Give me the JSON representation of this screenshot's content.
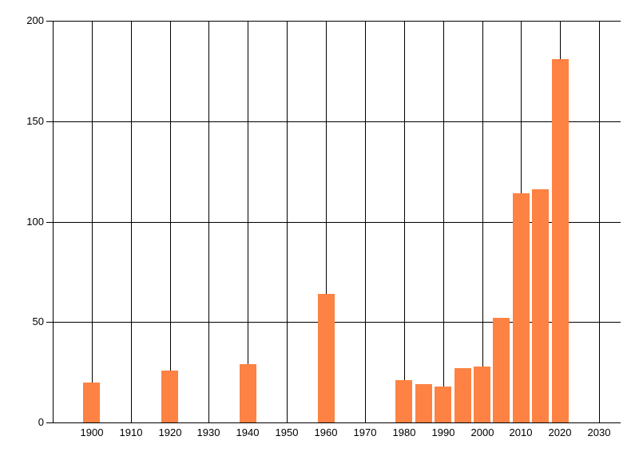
{
  "chart_data": {
    "type": "bar",
    "title": "",
    "xlabel": "",
    "ylabel": "",
    "x": [
      1900,
      1920,
      1940,
      1960,
      1980,
      1985,
      1990,
      1995,
      2000,
      2005,
      2010,
      2015,
      2020
    ],
    "values": [
      20,
      26,
      29,
      64,
      21,
      19,
      18,
      27,
      28,
      52,
      114,
      116,
      181
    ],
    "xticks": [
      1900,
      1910,
      1920,
      1930,
      1940,
      1950,
      1960,
      1970,
      1980,
      1990,
      2000,
      2010,
      2020,
      2030
    ],
    "yticks": [
      0,
      50,
      100,
      150,
      200
    ],
    "xlim": [
      1890,
      2035.5
    ],
    "ylim": [
      0,
      200
    ],
    "grid": "on",
    "legend_position": "none",
    "bar_color": "#FD8243",
    "grid_color": "#000000",
    "tick_label_color": "#000000",
    "background_color": "#FFFFFF"
  }
}
